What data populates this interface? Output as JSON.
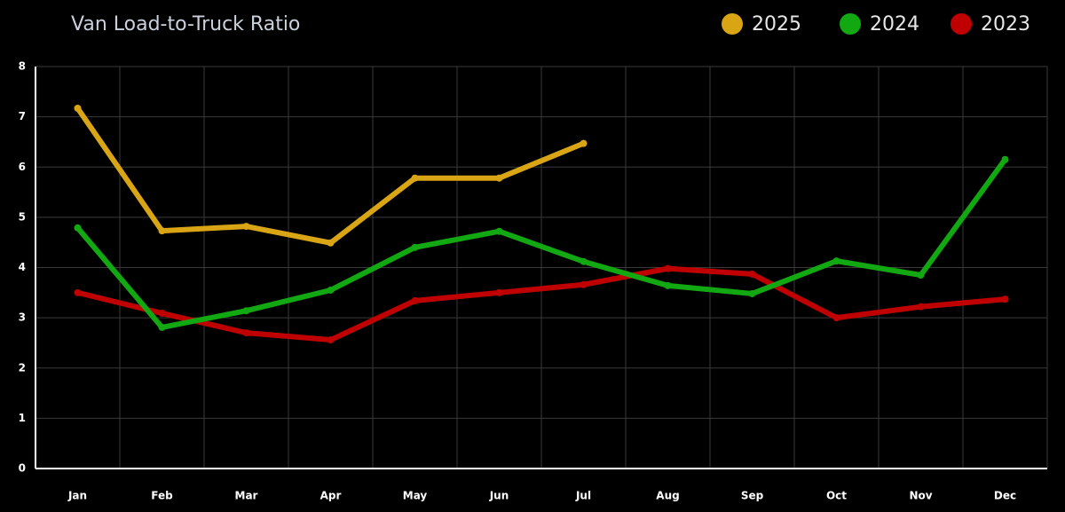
{
  "chart_data": {
    "type": "line",
    "title": "Van Load-to-Truck Ratio",
    "categories": [
      "Jan",
      "Feb",
      "Mar",
      "Apr",
      "May",
      "Jun",
      "Jul",
      "Aug",
      "Sep",
      "Oct",
      "Nov",
      "Dec"
    ],
    "series": [
      {
        "name": "2025",
        "color": "#d9a514",
        "values": [
          7.17,
          4.73,
          4.82,
          4.49,
          5.78,
          5.78,
          6.47,
          null,
          null,
          null,
          null,
          null
        ]
      },
      {
        "name": "2024",
        "color": "#12a812",
        "values": [
          4.79,
          2.81,
          3.14,
          3.55,
          4.4,
          4.72,
          4.12,
          3.64,
          3.48,
          4.13,
          3.85,
          6.15
        ]
      },
      {
        "name": "2023",
        "color": "#c00000",
        "values": [
          3.5,
          3.09,
          2.7,
          2.56,
          3.34,
          3.5,
          3.66,
          3.98,
          3.87,
          3.0,
          3.22,
          3.37
        ]
      }
    ],
    "ylim": [
      0,
      8
    ],
    "yticks": [
      0,
      1,
      2,
      3,
      4,
      5,
      6,
      7,
      8
    ],
    "grid": true
  }
}
